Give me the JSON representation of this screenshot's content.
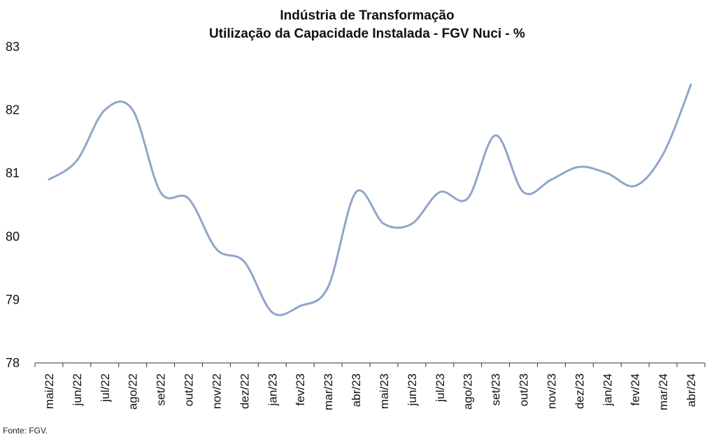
{
  "chart_data": {
    "type": "line",
    "title": "Indústria de Transformação",
    "subtitle": "Utilização da Capacidade Instalada - FGV Nuci - %",
    "categories": [
      "mai/22",
      "jun/22",
      "jul/22",
      "ago/22",
      "set/22",
      "out/22",
      "nov/22",
      "dez/22",
      "jan/23",
      "fev/23",
      "mar/23",
      "abr/23",
      "mai/23",
      "jun/23",
      "jul/23",
      "ago/23",
      "set/23",
      "out/23",
      "nov/23",
      "dez/23",
      "jan/24",
      "fev/24",
      "mar/24",
      "abr/24"
    ],
    "series": [
      {
        "values": [
          80.9,
          81.2,
          82.0,
          82.0,
          80.7,
          80.6,
          79.8,
          79.6,
          78.8,
          78.9,
          79.2,
          80.7,
          80.2,
          80.2,
          80.7,
          80.6,
          81.6,
          80.7,
          80.9,
          81.1,
          81.0,
          80.8,
          81.3,
          82.4
        ]
      }
    ],
    "ylim": [
      78,
      83
    ],
    "yticks": [
      78,
      79,
      80,
      81,
      82,
      83
    ],
    "grid": false,
    "line_color": "#8fa6c9"
  },
  "source": "Fonte: FGV."
}
